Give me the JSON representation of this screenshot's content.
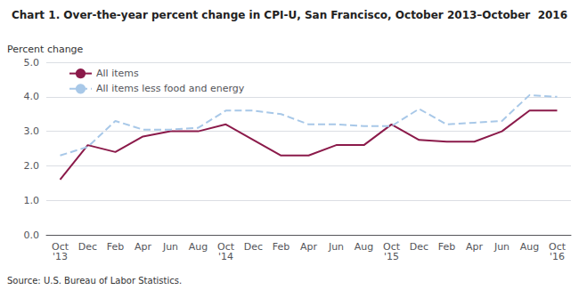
{
  "chart_data": {
    "type": "line",
    "title": "Chart 1. Over-the-year percent change in CPI-U, San Francisco, October 2013–October  2016",
    "ylabel": "Percent change",
    "annotations": [
      "Source: U.S. Bureau of Labor Statistics."
    ],
    "categories": [
      "Oct\n'13",
      "Dec",
      "Feb",
      "Apr",
      "Jun",
      "Aug",
      "Oct\n'14",
      "Dec",
      "Feb",
      "Apr",
      "Jun",
      "Aug",
      "Oct\n'15",
      "Dec",
      "Feb",
      "Apr",
      "Jun",
      "Aug",
      "Oct\n'16"
    ],
    "series": [
      {
        "name": "All items",
        "color": "#8B1A4A",
        "line_style": "solid",
        "values": [
          1.6,
          2.6,
          2.4,
          2.85,
          3.0,
          3.0,
          3.2,
          2.75,
          2.3,
          2.3,
          2.6,
          2.6,
          3.2,
          2.75,
          2.7,
          2.7,
          3.0,
          3.6,
          3.6
        ]
      },
      {
        "name": "All items less food and energy",
        "color": "#A8C8E8",
        "line_style": "dashed",
        "values": [
          2.3,
          2.55,
          3.3,
          3.05,
          3.05,
          3.1,
          3.6,
          3.6,
          3.5,
          3.2,
          3.2,
          3.15,
          3.15,
          3.65,
          3.2,
          3.25,
          3.3,
          4.05,
          4.0
        ]
      }
    ],
    "ylim": [
      0.0,
      5.0
    ],
    "yticks": [
      {
        "value": 0.0,
        "label": "0.0"
      },
      {
        "value": 1.0,
        "label": "1.0"
      },
      {
        "value": 2.0,
        "label": "2.0"
      },
      {
        "value": 3.0,
        "label": "3.0"
      },
      {
        "value": 4.0,
        "label": "4.0"
      },
      {
        "value": 5.0,
        "label": "5.0"
      }
    ],
    "grid": true,
    "legend": "upper left"
  }
}
